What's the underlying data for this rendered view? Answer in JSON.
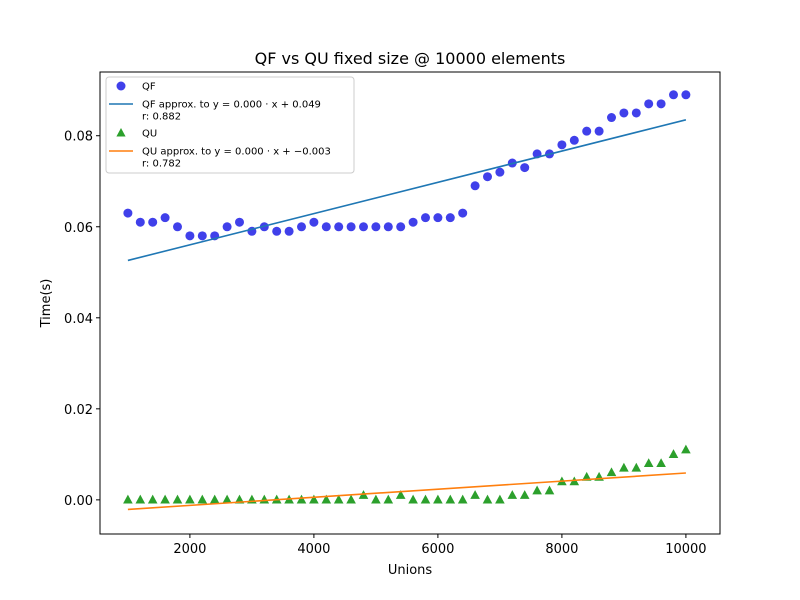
{
  "chart_data": {
    "type": "scatter",
    "title": "QF vs QU fixed size @ 10000 elements",
    "xlabel": "Unions",
    "ylabel": "Time(s)",
    "xlim": [
      550,
      10550
    ],
    "ylim": [
      -0.0075,
      0.094
    ],
    "xticks": [
      2000,
      4000,
      6000,
      8000,
      10000
    ],
    "xtick_labels": [
      "2000",
      "4000",
      "6000",
      "8000",
      "10000"
    ],
    "yticks": [
      0.0,
      0.02,
      0.04,
      0.06,
      0.08
    ],
    "ytick_labels": [
      "0.00",
      "0.02",
      "0.04",
      "0.06",
      "0.08"
    ],
    "grid": false,
    "legend_position": "top-left",
    "x": [
      1000,
      1200,
      1400,
      1600,
      1800,
      2000,
      2200,
      2400,
      2600,
      2800,
      3000,
      3200,
      3400,
      3600,
      3800,
      4000,
      4200,
      4400,
      4600,
      4800,
      5000,
      5200,
      5400,
      5600,
      5800,
      6000,
      6200,
      6400,
      6600,
      6800,
      7000,
      7200,
      7400,
      7600,
      7800,
      8000,
      8200,
      8400,
      8600,
      8800,
      9000,
      9200,
      9400,
      9600,
      9800,
      10000
    ],
    "series": [
      {
        "name": "QF",
        "kind": "scatter",
        "marker": "circle",
        "color": "#1f1fe6",
        "values": [
          0.063,
          0.061,
          0.061,
          0.062,
          0.06,
          0.058,
          0.058,
          0.058,
          0.06,
          0.061,
          0.059,
          0.06,
          0.059,
          0.059,
          0.06,
          0.061,
          0.06,
          0.06,
          0.06,
          0.06,
          0.06,
          0.06,
          0.06,
          0.061,
          0.062,
          0.062,
          0.062,
          0.063,
          0.069,
          0.071,
          0.072,
          0.074,
          0.073,
          0.076,
          0.076,
          0.078,
          0.079,
          0.081,
          0.081,
          0.084,
          0.085,
          0.085,
          0.087,
          0.087,
          0.089,
          0.089
        ]
      },
      {
        "name": "QU",
        "kind": "scatter",
        "marker": "triangle",
        "color": "#2ca02c",
        "values": [
          0.0,
          0.0,
          0.0,
          0.0,
          0.0,
          0.0,
          0.0,
          0.0,
          0.0,
          0.0,
          0.0,
          0.0,
          0.0,
          0.0,
          0.0,
          0.0,
          0.0,
          0.0,
          0.0,
          0.001,
          0.0,
          0.0,
          0.001,
          0.0,
          0.0,
          0.0,
          0.0,
          0.0,
          0.001,
          0.0,
          0.0,
          0.001,
          0.001,
          0.002,
          0.002,
          0.004,
          0.004,
          0.005,
          0.005,
          0.006,
          0.007,
          0.007,
          0.008,
          0.008,
          0.01,
          0.011
        ]
      }
    ],
    "fits": [
      {
        "name": "QF approx. to y = 0.000 · x + 0.049",
        "r_label": "r: 0.882",
        "color": "#1f77b4",
        "x": [
          1000,
          10000
        ],
        "y": [
          0.0526,
          0.0835
        ]
      },
      {
        "name": "QU approx. to y = 0.000 · x + −0.003",
        "r_label": "r: 0.782",
        "color": "#ff7f0e",
        "x": [
          1000,
          10000
        ],
        "y": [
          -0.0021,
          0.0059
        ]
      }
    ],
    "legend": [
      {
        "label": "QF",
        "kind": "circle",
        "color": "#1f1fe6"
      },
      {
        "label": "QF approx. to y = 0.000 · x + 0.049",
        "sub": "r: 0.882",
        "kind": "line",
        "color": "#1f77b4"
      },
      {
        "label": "QU",
        "kind": "triangle",
        "color": "#2ca02c"
      },
      {
        "label": "QU approx. to y = 0.000 · x + −0.003",
        "sub": "r: 0.782",
        "kind": "line",
        "color": "#ff7f0e"
      }
    ]
  }
}
